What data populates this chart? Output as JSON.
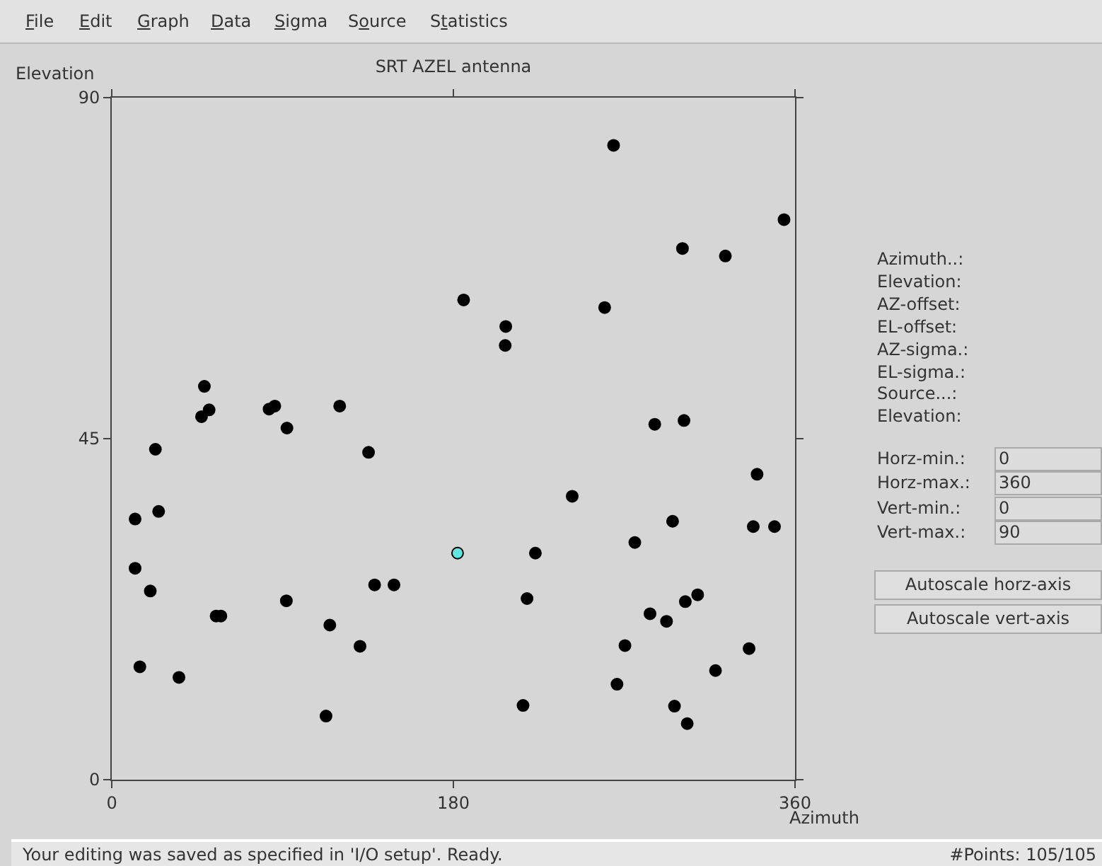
{
  "chart_data": {
    "type": "scatter",
    "title": "SRT AZEL antenna",
    "xlabel": "Azimuth",
    "ylabel": "Elevation",
    "xlim": [
      0,
      360
    ],
    "ylim": [
      0,
      90
    ],
    "xticks": [
      0,
      180,
      360
    ],
    "yticks": [
      0,
      45,
      90
    ],
    "grid": false,
    "marker": "circle",
    "series": [
      {
        "color": "#000000",
        "x": [
          48.8,
          51.3,
          47.3,
          23.0,
          82.9,
          85.9,
          120.1,
          92.3,
          135.3,
          12.3,
          24.7,
          12.3,
          20.3,
          138.5,
          148.7,
          92.0,
          55.0,
          57.5,
          114.9,
          130.8,
          14.8,
          35.4,
          112.9,
          264.4,
          354.2,
          300.7,
          323.3,
          185.4,
          259.7,
          207.6,
          207.3,
          286.1,
          301.5,
          340.0,
          242.6,
          295.5,
          338.0,
          349.2,
          275.6,
          223.2,
          218.8,
          308.7,
          302.2,
          283.6,
          292.3,
          270.4,
          335.8,
          318.1,
          266.2,
          216.7,
          296.5,
          303.2
        ],
        "values": [
          51.9,
          48.8,
          47.9,
          43.6,
          48.9,
          49.3,
          49.3,
          46.4,
          43.2,
          34.4,
          35.4,
          27.9,
          24.9,
          25.7,
          25.7,
          23.6,
          21.6,
          21.6,
          20.4,
          17.6,
          14.9,
          13.5,
          8.4,
          83.7,
          73.9,
          70.1,
          69.1,
          63.3,
          62.3,
          59.8,
          57.3,
          46.9,
          47.4,
          40.3,
          37.4,
          34.1,
          33.4,
          33.4,
          31.3,
          29.9,
          23.9,
          24.4,
          23.5,
          21.9,
          20.9,
          17.7,
          17.3,
          14.4,
          12.6,
          9.8,
          9.7,
          7.4
        ]
      },
      {
        "color": "#5ee8e0",
        "x": [
          182.2
        ],
        "values": [
          29.9
        ]
      }
    ],
    "annotations": [
      "File",
      "Edit",
      "Graph",
      "Data",
      "Sigma",
      "Source",
      "Statistics",
      "Azimuth..:",
      "Elevation:",
      "AZ-offset:",
      "EL-offset:",
      "AZ-sigma.:",
      "EL-sigma.:",
      "Source...:",
      "Elevation:",
      "Horz-min.:",
      "Horz-max.:",
      "Vert-min.:",
      "Vert-max.:",
      "Autoscale horz-axis",
      "Autoscale vert-axis",
      "Your editing was saved as specified in 'I/O setup'. Ready.",
      "#Points: 105/105",
      "0",
      "360",
      "0",
      "90"
    ]
  }
}
